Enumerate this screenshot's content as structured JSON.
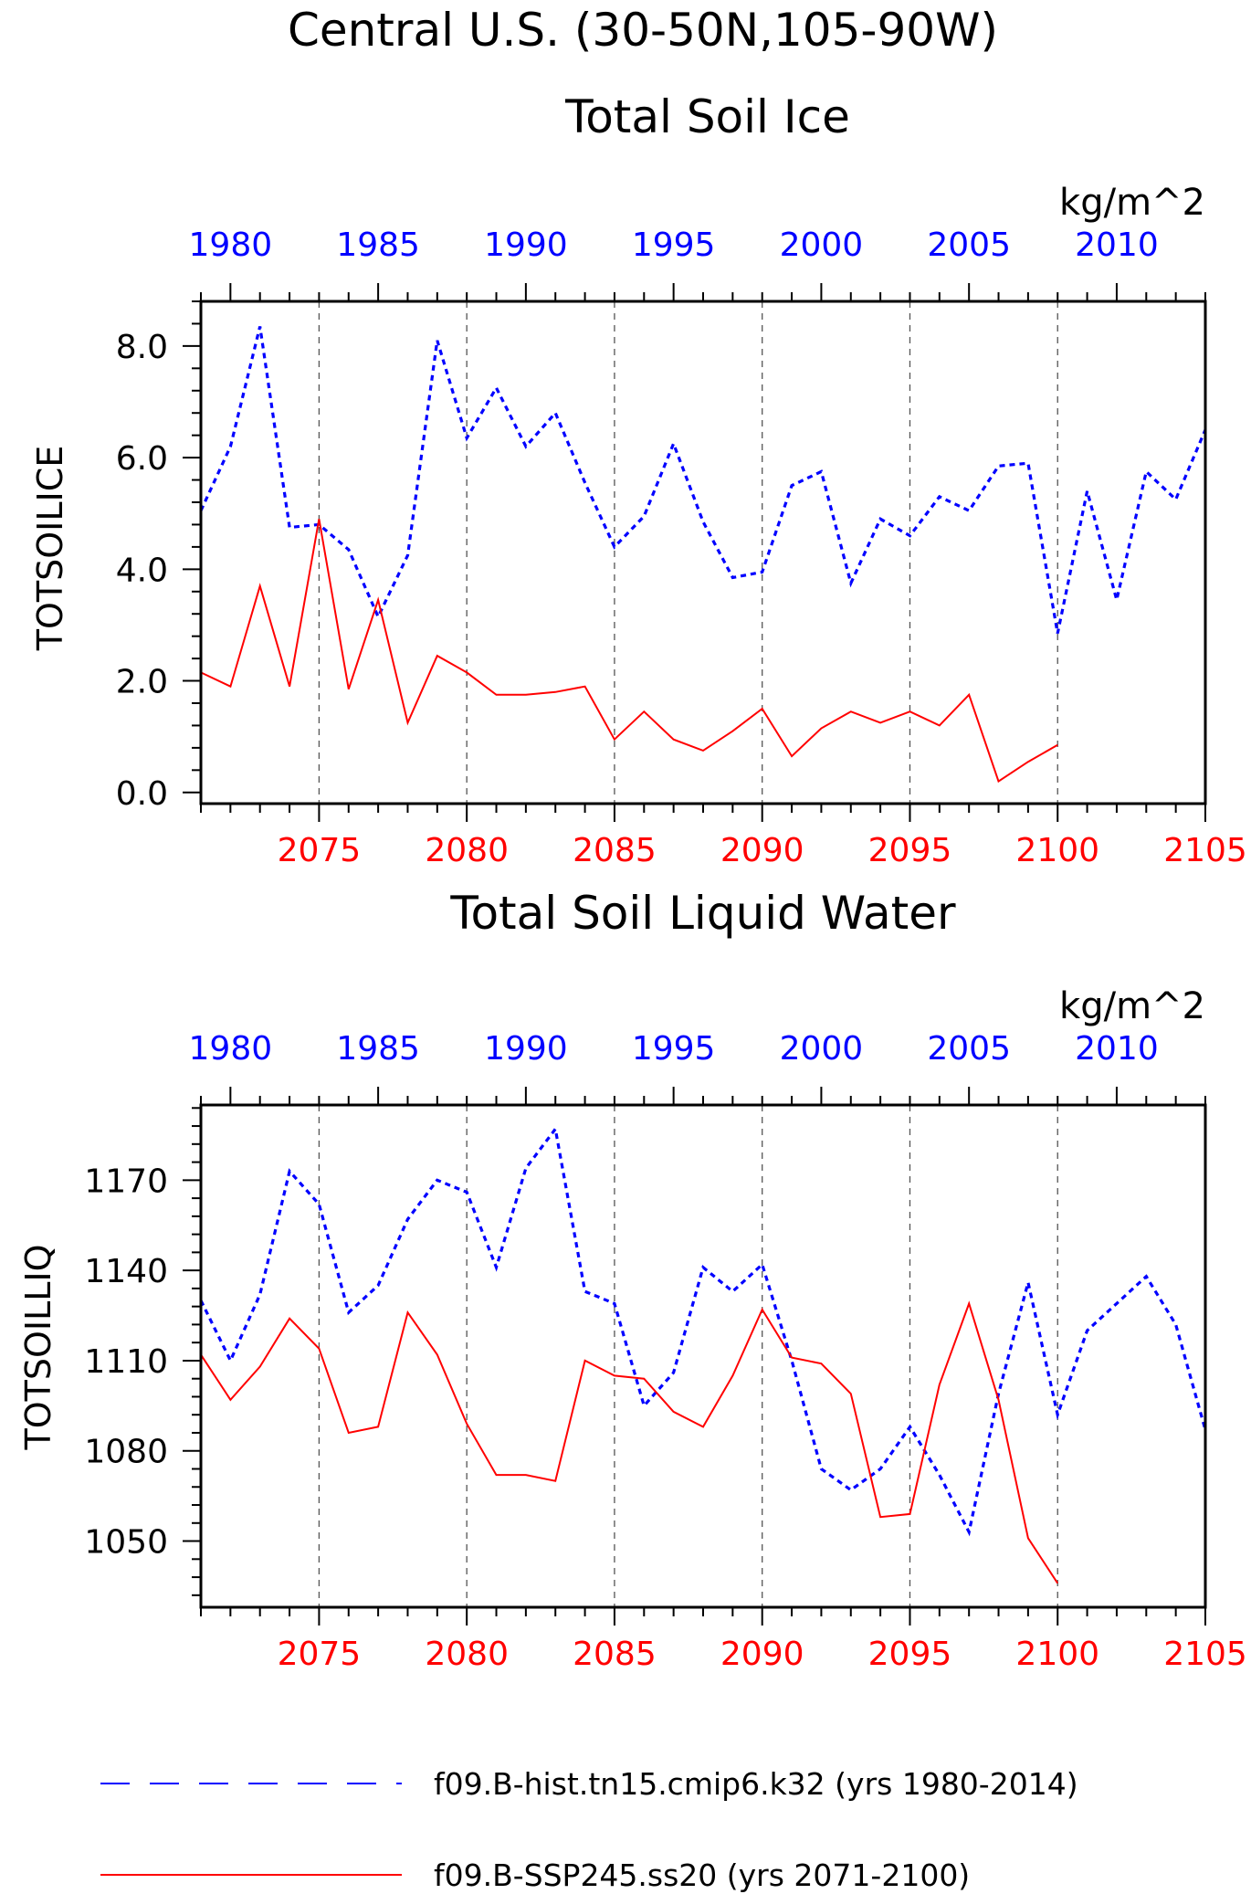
{
  "title": "Central U.S. (30-50N,105-90W)",
  "colors": {
    "hist": "#0000ff",
    "ssp": "#ff0000",
    "axis": "#000000"
  },
  "legend": [
    {
      "label": "f09.B-hist.tn15.cmip6.k32 (yrs 1980-2014)",
      "style": "dashed",
      "color": "#0000ff"
    },
    {
      "label": "f09.B-SSP245.ss20 (yrs 2071-2100)",
      "style": "solid",
      "color": "#ff0000"
    }
  ],
  "chart_data": [
    {
      "type": "line",
      "title": "Total Soil Ice",
      "ylabel": "TOTSOILICE",
      "units": "kg/m^2",
      "ylim": [
        -0.2,
        8.8
      ],
      "yticks": [
        0.0,
        2.0,
        4.0,
        6.0,
        8.0
      ],
      "ytick_labels": [
        "0.0",
        "2.0",
        "4.0",
        "6.0",
        "8.0"
      ],
      "x_top": {
        "range": [
          1979,
          2013
        ],
        "ticks": [
          1980,
          1985,
          1990,
          1995,
          2000,
          2005,
          2010
        ]
      },
      "x_bottom": {
        "range": [
          2071,
          2105
        ],
        "ticks": [
          2075,
          2080,
          2085,
          2090,
          2095,
          2100,
          2105
        ]
      },
      "series": [
        {
          "name": "f09.B-hist.tn15.cmip6.k32 (yrs 1980-2014)",
          "axis": "top",
          "style": "dashed",
          "x": [
            1979,
            1980,
            1981,
            1982,
            1983,
            1984,
            1985,
            1986,
            1987,
            1988,
            1989,
            1990,
            1991,
            1992,
            1993,
            1994,
            1995,
            1996,
            1997,
            1998,
            1999,
            2000,
            2001,
            2002,
            2003,
            2004,
            2005,
            2006,
            2007,
            2008,
            2009,
            2010,
            2011,
            2012,
            2013
          ],
          "values": [
            5.05,
            6.2,
            8.35,
            4.75,
            4.8,
            4.35,
            3.15,
            4.25,
            8.1,
            6.35,
            7.25,
            6.2,
            6.8,
            5.55,
            4.4,
            4.95,
            6.25,
            4.85,
            3.85,
            3.95,
            5.5,
            5.75,
            3.75,
            4.9,
            4.6,
            5.3,
            5.05,
            5.85,
            5.9,
            2.85,
            5.4,
            3.45,
            5.75,
            5.25,
            6.5
          ]
        },
        {
          "name": "f09.B-SSP245.ss20 (yrs 2071-2100)",
          "axis": "bottom",
          "style": "solid",
          "x": [
            2071,
            2072,
            2073,
            2074,
            2075,
            2076,
            2077,
            2078,
            2079,
            2080,
            2081,
            2082,
            2083,
            2084,
            2085,
            2086,
            2087,
            2088,
            2089,
            2090,
            2091,
            2092,
            2093,
            2094,
            2095,
            2096,
            2097,
            2098,
            2099,
            2100
          ],
          "values": [
            2.15,
            1.9,
            3.7,
            1.9,
            4.9,
            1.85,
            3.45,
            1.25,
            2.45,
            2.15,
            1.75,
            1.75,
            1.8,
            1.9,
            0.95,
            1.45,
            0.95,
            0.75,
            1.1,
            1.5,
            0.65,
            1.15,
            1.45,
            1.25,
            1.45,
            1.2,
            1.75,
            0.2,
            0.55,
            0.85
          ]
        }
      ]
    },
    {
      "type": "line",
      "title": "Total Soil Liquid Water",
      "ylabel": "TOTSOILLIQ",
      "units": "kg/m^2",
      "ylim": [
        1028,
        1195
      ],
      "yticks": [
        1050,
        1080,
        1110,
        1140,
        1170
      ],
      "ytick_labels": [
        "1050",
        "1080",
        "1110",
        "1140",
        "1170"
      ],
      "x_top": {
        "range": [
          1979,
          2013
        ],
        "ticks": [
          1980,
          1985,
          1990,
          1995,
          2000,
          2005,
          2010
        ]
      },
      "x_bottom": {
        "range": [
          2071,
          2105
        ],
        "ticks": [
          2075,
          2080,
          2085,
          2090,
          2095,
          2100,
          2105
        ]
      },
      "series": [
        {
          "name": "f09.B-hist.tn15.cmip6.k32 (yrs 1980-2014)",
          "axis": "top",
          "style": "dashed",
          "x": [
            1979,
            1980,
            1981,
            1982,
            1983,
            1984,
            1985,
            1986,
            1987,
            1988,
            1989,
            1990,
            1991,
            1992,
            1993,
            1994,
            1995,
            1996,
            1997,
            1998,
            1999,
            2000,
            2001,
            2002,
            2003,
            2004,
            2005,
            2006,
            2007,
            2008,
            2009,
            2010,
            2011,
            2012,
            2013
          ],
          "values": [
            1130,
            1110,
            1132,
            1173,
            1162,
            1126,
            1135,
            1157,
            1170,
            1166,
            1141,
            1174,
            1187,
            1133,
            1129,
            1095,
            1106,
            1141,
            1133,
            1142,
            1110,
            1074,
            1067,
            1074,
            1088,
            1072,
            1053,
            1099,
            1136,
            1092,
            1120,
            1129,
            1138,
            1122,
            1087
          ]
        },
        {
          "name": "f09.B-SSP245.ss20 (yrs 2071-2100)",
          "axis": "bottom",
          "style": "solid",
          "x": [
            2071,
            2072,
            2073,
            2074,
            2075,
            2076,
            2077,
            2078,
            2079,
            2080,
            2081,
            2082,
            2083,
            2084,
            2085,
            2086,
            2087,
            2088,
            2089,
            2090,
            2091,
            2092,
            2093,
            2094,
            2095,
            2096,
            2097,
            2098,
            2099,
            2100
          ],
          "values": [
            1112,
            1097,
            1108,
            1124,
            1114,
            1086,
            1088,
            1126,
            1112,
            1089,
            1072,
            1072,
            1070,
            1110,
            1105,
            1104,
            1093,
            1088,
            1105,
            1127,
            1111,
            1109,
            1099,
            1058,
            1059,
            1102,
            1129,
            1097,
            1051,
            1036
          ]
        }
      ]
    }
  ]
}
